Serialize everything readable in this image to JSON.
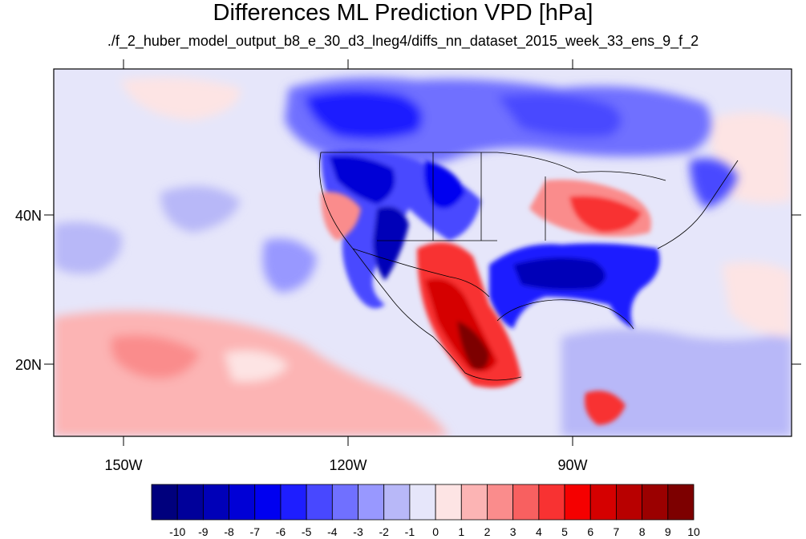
{
  "title": "Differences ML Prediction VPD [hPa]",
  "subtitle": "./f_2_huber_model_output_b8_e_30_d3_lneg4/diffs_nn_dataset_2015_week_33_ens_9_f_2",
  "map": {
    "lat_labels": [
      "40N",
      "20N"
    ],
    "lon_labels": [
      "150W",
      "120W",
      "90W"
    ],
    "background_color": "#e6e6fa"
  },
  "colorbar": {
    "labels": [
      "-10",
      "-9",
      "-8",
      "-7",
      "-6",
      "-5",
      "-4",
      "-3",
      "-2",
      "-1",
      "0",
      "1",
      "2",
      "3",
      "4",
      "5",
      "6",
      "7",
      "8",
      "9",
      "10"
    ],
    "colors": [
      "#00007d",
      "#00009a",
      "#0000b8",
      "#0000d6",
      "#0000f0",
      "#1e1eff",
      "#4848ff",
      "#7070ff",
      "#9898ff",
      "#b8b8f8",
      "#e6e6fa",
      "#fde4e4",
      "#fcb4b4",
      "#fa8c8c",
      "#f86060",
      "#f83232",
      "#f50000",
      "#d50000",
      "#b80000",
      "#9b0000",
      "#7d0000"
    ]
  }
}
